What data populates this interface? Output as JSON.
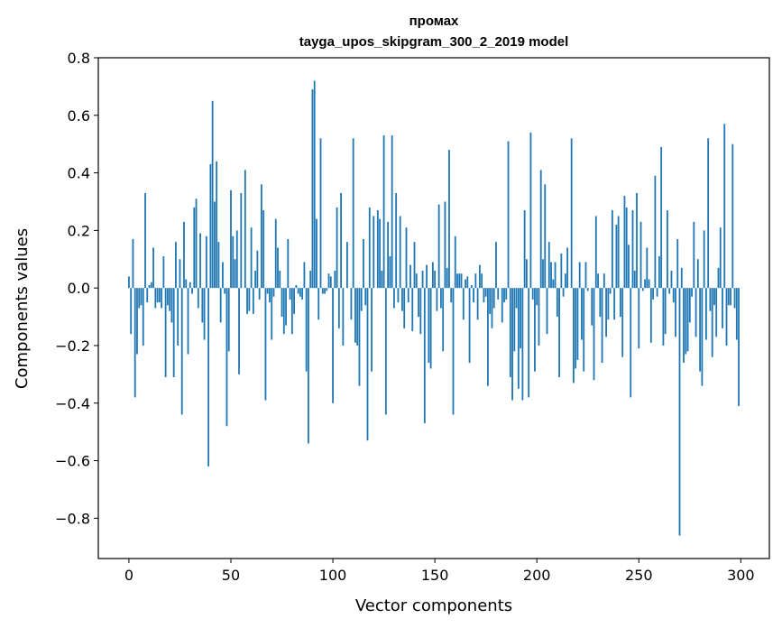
{
  "chart_data": {
    "type": "bar",
    "title": "промах",
    "subtitle": "tayga_upos_skipgram_300_2_2019 model",
    "xlabel": "Vector components",
    "ylabel": "Components values",
    "xlim": [
      -15,
      314
    ],
    "ylim": [
      -0.94,
      0.8
    ],
    "x_ticks": [
      0,
      50,
      100,
      150,
      200,
      250,
      300
    ],
    "x_tick_labels": [
      "0",
      "50",
      "100",
      "150",
      "200",
      "250",
      "300"
    ],
    "y_ticks": [
      -0.8,
      -0.6,
      -0.4,
      -0.2,
      0.0,
      0.2,
      0.4,
      0.6,
      0.8
    ],
    "y_tick_labels": [
      "−0.8",
      "−0.6",
      "−0.4",
      "−0.2",
      "0.0",
      "0.2",
      "0.4",
      "0.6",
      "0.8"
    ],
    "bar_color": "#1f77b4",
    "values": [
      0.04,
      -0.16,
      0.17,
      -0.38,
      -0.23,
      -0.07,
      -0.06,
      -0.2,
      0.33,
      -0.05,
      0.01,
      0.02,
      0.14,
      -0.07,
      -0.05,
      -0.05,
      -0.07,
      0.11,
      -0.31,
      -0.06,
      -0.08,
      -0.12,
      -0.31,
      0.16,
      -0.2,
      0.1,
      -0.44,
      0.23,
      0.03,
      -0.23,
      0.02,
      -0.02,
      0.28,
      0.31,
      -0.07,
      0.19,
      -0.12,
      -0.18,
      0.18,
      -0.62,
      0.43,
      0.65,
      0.3,
      0.44,
      0.16,
      -0.12,
      0.09,
      -0.02,
      -0.48,
      -0.22,
      0.34,
      0.18,
      0.1,
      0.2,
      -0.3,
      0.33,
      0.0,
      0.41,
      -0.09,
      -0.08,
      0.21,
      -0.09,
      0.06,
      0.13,
      -0.04,
      0.36,
      0.27,
      -0.39,
      -0.02,
      -0.05,
      -0.18,
      -0.03,
      0.24,
      0.14,
      0.06,
      -0.1,
      -0.16,
      -0.13,
      0.17,
      -0.04,
      -0.16,
      -0.09,
      0.01,
      -0.02,
      -0.03,
      -0.04,
      0.09,
      -0.29,
      -0.54,
      0.06,
      0.69,
      0.72,
      0.24,
      -0.11,
      0.52,
      -0.02,
      -0.02,
      -0.01,
      0.05,
      0.04,
      -0.4,
      0.06,
      0.28,
      -0.14,
      0.33,
      -0.2,
      0.0,
      0.16,
      0.0,
      -0.11,
      0.52,
      -0.19,
      -0.2,
      -0.34,
      -0.08,
      0.17,
      -0.06,
      -0.53,
      0.28,
      -0.29,
      0.25,
      0.0,
      0.27,
      0.24,
      0.06,
      0.53,
      -0.44,
      0.23,
      0.11,
      0.53,
      -0.07,
      0.33,
      -0.05,
      0.25,
      -0.08,
      -0.14,
      0.21,
      -0.05,
      0.08,
      -0.15,
      0.16,
      0.05,
      -0.1,
      -0.16,
      0.06,
      -0.47,
      0.08,
      -0.26,
      -0.28,
      0.09,
      0.06,
      -0.08,
      0.29,
      -0.07,
      -0.22,
      0.3,
      0.07,
      0.48,
      -0.05,
      -0.44,
      0.18,
      0.05,
      0.05,
      0.05,
      -0.11,
      0.03,
      0.04,
      -0.26,
      0.01,
      -0.05,
      0.05,
      -0.11,
      0.08,
      0.05,
      -0.05,
      -0.03,
      -0.34,
      -0.09,
      -0.14,
      -0.07,
      0.16,
      -0.04,
      0.0,
      -0.12,
      -0.05,
      -0.04,
      0.51,
      -0.31,
      -0.39,
      -0.22,
      -0.07,
      -0.35,
      -0.21,
      -0.39,
      0.27,
      0.1,
      -0.38,
      0.54,
      -0.04,
      -0.29,
      -0.06,
      -0.2,
      0.41,
      0.1,
      0.36,
      -0.16,
      0.16,
      0.09,
      0.03,
      0.09,
      -0.1,
      -0.31,
      0.12,
      -0.03,
      0.05,
      0.14,
      0.0,
      0.52,
      -0.33,
      -0.28,
      -0.25,
      0.09,
      -0.18,
      -0.29,
      0.09,
      -0.01,
      0.0,
      -0.13,
      -0.32,
      0.25,
      0.05,
      -0.1,
      -0.26,
      0.05,
      -0.17,
      -0.11,
      -0.02,
      0.27,
      -0.11,
      0.22,
      0.25,
      -0.1,
      -0.24,
      0.32,
      0.28,
      0.15,
      -0.38,
      0.27,
      0.06,
      0.33,
      -0.21,
      0.23,
      -0.01,
      0.03,
      0.14,
      0.03,
      -0.19,
      -0.04,
      0.39,
      -0.03,
      0.11,
      0.49,
      -0.2,
      -0.16,
      0.27,
      -0.02,
      0.06,
      -0.05,
      -0.17,
      0.17,
      -0.86,
      0.07,
      -0.26,
      -0.23,
      -0.22,
      -0.12,
      -0.03,
      0.23,
      -0.17,
      0.1,
      -0.29,
      -0.34,
      0.2,
      -0.18,
      0.52,
      -0.08,
      -0.24,
      -0.06,
      -0.17,
      0.07,
      0.21,
      -0.14,
      0.57,
      -0.2,
      -0.06,
      -0.06,
      0.5,
      -0.07,
      -0.18,
      -0.41
    ]
  }
}
